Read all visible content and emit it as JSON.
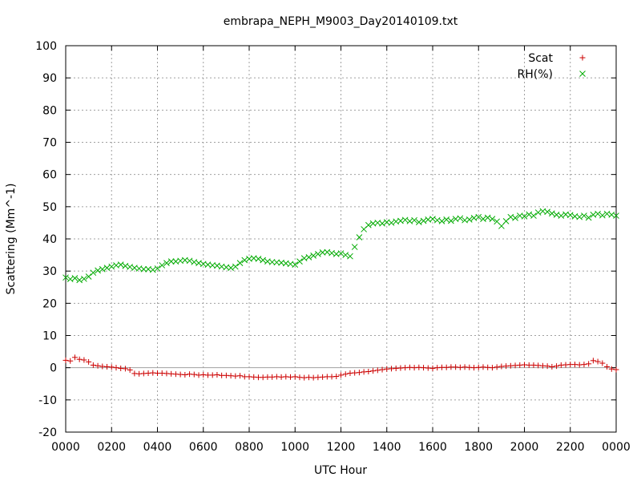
{
  "chart_data": {
    "type": "scatter",
    "title": "embrapa_NEPH_M9003_Day20140109.txt",
    "xlabel": "UTC Hour",
    "ylabel": "Scattering (Mm^-1)",
    "xlim": [
      0,
      24
    ],
    "ylim": [
      -20,
      100
    ],
    "x_tick_labels": [
      "0000",
      "0200",
      "0400",
      "0600",
      "0800",
      "1000",
      "1200",
      "1400",
      "1600",
      "1800",
      "2000",
      "2200",
      "0000"
    ],
    "y_tick_labels": [
      "-20",
      "-10",
      "0",
      "10",
      "20",
      "30",
      "40",
      "50",
      "60",
      "70",
      "80",
      "90",
      "100"
    ],
    "grid": true,
    "legend_position": "top-right",
    "series": [
      {
        "name": "Scat",
        "marker": "+",
        "color": "#cc0000",
        "points": [
          [
            0.0,
            2.3
          ],
          [
            0.2,
            2.1
          ],
          [
            0.4,
            3.2
          ],
          [
            0.6,
            2.6
          ],
          [
            0.8,
            2.4
          ],
          [
            1.0,
            1.8
          ],
          [
            1.2,
            0.8
          ],
          [
            1.4,
            0.6
          ],
          [
            1.6,
            0.4
          ],
          [
            1.8,
            0.3
          ],
          [
            2.0,
            0.2
          ],
          [
            2.2,
            0.0
          ],
          [
            2.4,
            -0.2
          ],
          [
            2.6,
            -0.3
          ],
          [
            2.8,
            -0.7
          ],
          [
            3.0,
            -1.8
          ],
          [
            3.2,
            -1.9
          ],
          [
            3.4,
            -1.8
          ],
          [
            3.6,
            -1.7
          ],
          [
            3.8,
            -1.6
          ],
          [
            4.0,
            -1.7
          ],
          [
            4.2,
            -1.7
          ],
          [
            4.4,
            -1.8
          ],
          [
            4.6,
            -1.9
          ],
          [
            4.8,
            -2.0
          ],
          [
            5.0,
            -2.1
          ],
          [
            5.2,
            -2.2
          ],
          [
            5.4,
            -2.0
          ],
          [
            5.6,
            -2.1
          ],
          [
            5.8,
            -2.3
          ],
          [
            6.0,
            -2.2
          ],
          [
            6.2,
            -2.3
          ],
          [
            6.4,
            -2.3
          ],
          [
            6.6,
            -2.2
          ],
          [
            6.8,
            -2.4
          ],
          [
            7.0,
            -2.4
          ],
          [
            7.2,
            -2.5
          ],
          [
            7.4,
            -2.6
          ],
          [
            7.6,
            -2.5
          ],
          [
            7.8,
            -2.8
          ],
          [
            8.0,
            -2.8
          ],
          [
            8.2,
            -2.9
          ],
          [
            8.4,
            -3.0
          ],
          [
            8.6,
            -3.0
          ],
          [
            8.8,
            -2.9
          ],
          [
            9.0,
            -2.9
          ],
          [
            9.2,
            -2.8
          ],
          [
            9.4,
            -2.9
          ],
          [
            9.6,
            -2.8
          ],
          [
            9.8,
            -2.9
          ],
          [
            10.0,
            -2.8
          ],
          [
            10.2,
            -3.0
          ],
          [
            10.4,
            -3.1
          ],
          [
            10.6,
            -3.0
          ],
          [
            10.8,
            -3.1
          ],
          [
            11.0,
            -3.0
          ],
          [
            11.2,
            -2.9
          ],
          [
            11.4,
            -2.8
          ],
          [
            11.6,
            -2.8
          ],
          [
            11.8,
            -2.7
          ],
          [
            12.0,
            -2.3
          ],
          [
            12.2,
            -2.0
          ],
          [
            12.4,
            -1.7
          ],
          [
            12.6,
            -1.6
          ],
          [
            12.8,
            -1.5
          ],
          [
            13.0,
            -1.3
          ],
          [
            13.2,
            -1.2
          ],
          [
            13.4,
            -1.0
          ],
          [
            13.6,
            -0.8
          ],
          [
            13.8,
            -0.6
          ],
          [
            14.0,
            -0.4
          ],
          [
            14.2,
            -0.3
          ],
          [
            14.4,
            -0.2
          ],
          [
            14.6,
            -0.1
          ],
          [
            14.8,
            0.0
          ],
          [
            15.0,
            0.1
          ],
          [
            15.2,
            0.0
          ],
          [
            15.4,
            0.1
          ],
          [
            15.6,
            0.0
          ],
          [
            15.8,
            -0.1
          ],
          [
            16.0,
            -0.2
          ],
          [
            16.2,
            0.0
          ],
          [
            16.4,
            0.1
          ],
          [
            16.6,
            0.1
          ],
          [
            16.8,
            0.2
          ],
          [
            17.0,
            0.2
          ],
          [
            17.2,
            0.1
          ],
          [
            17.4,
            0.2
          ],
          [
            17.6,
            0.1
          ],
          [
            17.8,
            0.0
          ],
          [
            18.0,
            0.1
          ],
          [
            18.2,
            0.2
          ],
          [
            18.4,
            0.1
          ],
          [
            18.6,
            0.0
          ],
          [
            18.8,
            0.2
          ],
          [
            19.0,
            0.4
          ],
          [
            19.2,
            0.5
          ],
          [
            19.4,
            0.6
          ],
          [
            19.6,
            0.7
          ],
          [
            19.8,
            0.8
          ],
          [
            20.0,
            0.9
          ],
          [
            20.2,
            0.8
          ],
          [
            20.4,
            0.8
          ],
          [
            20.6,
            0.7
          ],
          [
            20.8,
            0.6
          ],
          [
            21.0,
            0.5
          ],
          [
            21.2,
            0.3
          ],
          [
            21.4,
            0.5
          ],
          [
            21.6,
            0.8
          ],
          [
            21.8,
            0.9
          ],
          [
            22.0,
            1.0
          ],
          [
            22.2,
            1.0
          ],
          [
            22.4,
            0.9
          ],
          [
            22.6,
            1.0
          ],
          [
            22.8,
            1.2
          ],
          [
            23.0,
            2.2
          ],
          [
            23.2,
            1.9
          ],
          [
            23.4,
            1.4
          ],
          [
            23.6,
            0.3
          ],
          [
            23.8,
            -0.4
          ],
          [
            24.0,
            -0.6
          ]
        ]
      },
      {
        "name": "RH(%)",
        "marker": "x",
        "color": "#00aa00",
        "points": [
          [
            0.0,
            28.0
          ],
          [
            0.2,
            27.5
          ],
          [
            0.4,
            27.8
          ],
          [
            0.6,
            27.2
          ],
          [
            0.8,
            27.6
          ],
          [
            1.0,
            28.3
          ],
          [
            1.2,
            29.5
          ],
          [
            1.4,
            30.2
          ],
          [
            1.6,
            30.6
          ],
          [
            1.8,
            31.0
          ],
          [
            2.0,
            31.4
          ],
          [
            2.2,
            31.8
          ],
          [
            2.4,
            32.0
          ],
          [
            2.6,
            31.6
          ],
          [
            2.8,
            31.3
          ],
          [
            3.0,
            31.0
          ],
          [
            3.2,
            30.8
          ],
          [
            3.4,
            30.6
          ],
          [
            3.6,
            30.6
          ],
          [
            3.8,
            30.4
          ],
          [
            4.0,
            30.8
          ],
          [
            4.2,
            31.8
          ],
          [
            4.4,
            32.5
          ],
          [
            4.6,
            33.0
          ],
          [
            4.8,
            33.0
          ],
          [
            5.0,
            33.2
          ],
          [
            5.2,
            33.4
          ],
          [
            5.4,
            33.2
          ],
          [
            5.6,
            32.8
          ],
          [
            5.8,
            32.5
          ],
          [
            6.0,
            32.2
          ],
          [
            6.2,
            32.0
          ],
          [
            6.4,
            31.8
          ],
          [
            6.6,
            31.7
          ],
          [
            6.8,
            31.4
          ],
          [
            7.0,
            31.2
          ],
          [
            7.2,
            31.0
          ],
          [
            7.4,
            31.4
          ],
          [
            7.6,
            32.5
          ],
          [
            7.8,
            33.4
          ],
          [
            8.0,
            33.8
          ],
          [
            8.2,
            34.0
          ],
          [
            8.4,
            33.8
          ],
          [
            8.6,
            33.4
          ],
          [
            8.8,
            33.0
          ],
          [
            9.0,
            32.8
          ],
          [
            9.2,
            32.7
          ],
          [
            9.4,
            32.6
          ],
          [
            9.6,
            32.4
          ],
          [
            9.8,
            32.2
          ],
          [
            10.0,
            32.0
          ],
          [
            10.2,
            33.0
          ],
          [
            10.4,
            34.0
          ],
          [
            10.6,
            34.3
          ],
          [
            10.8,
            34.8
          ],
          [
            11.0,
            35.3
          ],
          [
            11.2,
            35.8
          ],
          [
            11.4,
            35.9
          ],
          [
            11.6,
            35.6
          ],
          [
            11.8,
            35.3
          ],
          [
            12.0,
            35.5
          ],
          [
            12.2,
            35.0
          ],
          [
            12.4,
            34.6
          ],
          [
            12.6,
            37.5
          ],
          [
            12.8,
            40.5
          ],
          [
            13.0,
            43.0
          ],
          [
            13.2,
            44.3
          ],
          [
            13.4,
            44.8
          ],
          [
            13.6,
            45.0
          ],
          [
            13.8,
            44.8
          ],
          [
            14.0,
            45.2
          ],
          [
            14.2,
            45.0
          ],
          [
            14.4,
            45.4
          ],
          [
            14.6,
            45.6
          ],
          [
            14.8,
            45.9
          ],
          [
            15.0,
            45.5
          ],
          [
            15.2,
            45.8
          ],
          [
            15.4,
            45.2
          ],
          [
            15.6,
            45.6
          ],
          [
            15.8,
            46.0
          ],
          [
            16.0,
            46.2
          ],
          [
            16.2,
            45.8
          ],
          [
            16.4,
            45.5
          ],
          [
            16.6,
            46.0
          ],
          [
            16.8,
            45.6
          ],
          [
            17.0,
            46.2
          ],
          [
            17.2,
            46.4
          ],
          [
            17.4,
            45.8
          ],
          [
            17.6,
            46.0
          ],
          [
            17.8,
            46.5
          ],
          [
            18.0,
            46.8
          ],
          [
            18.2,
            46.2
          ],
          [
            18.4,
            46.6
          ],
          [
            18.6,
            46.2
          ],
          [
            18.8,
            45.4
          ],
          [
            19.0,
            44.0
          ],
          [
            19.2,
            45.5
          ],
          [
            19.4,
            46.8
          ],
          [
            19.6,
            46.5
          ],
          [
            19.8,
            47.2
          ],
          [
            20.0,
            47.0
          ],
          [
            20.2,
            47.6
          ],
          [
            20.4,
            47.2
          ],
          [
            20.6,
            48.2
          ],
          [
            20.8,
            48.6
          ],
          [
            21.0,
            48.4
          ],
          [
            21.2,
            47.9
          ],
          [
            21.4,
            47.5
          ],
          [
            21.6,
            47.2
          ],
          [
            21.8,
            47.6
          ],
          [
            22.0,
            47.4
          ],
          [
            22.2,
            47.0
          ],
          [
            22.4,
            46.8
          ],
          [
            22.6,
            47.2
          ],
          [
            22.8,
            46.6
          ],
          [
            23.0,
            47.5
          ],
          [
            23.2,
            47.8
          ],
          [
            23.4,
            47.3
          ],
          [
            23.6,
            47.8
          ],
          [
            23.8,
            47.5
          ],
          [
            24.0,
            47.2
          ]
        ]
      }
    ]
  }
}
